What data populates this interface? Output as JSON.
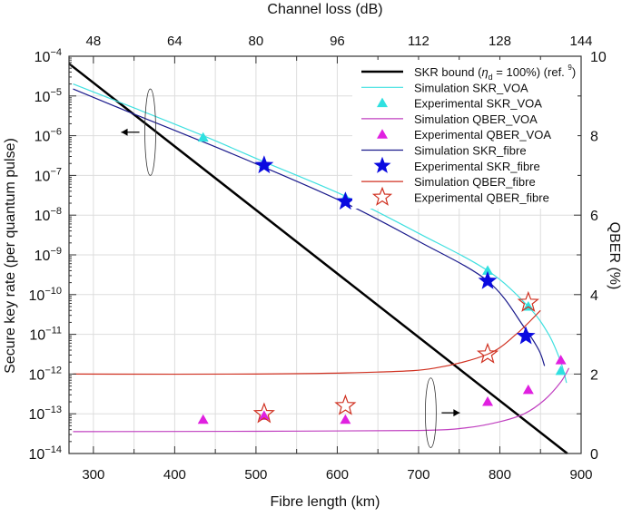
{
  "chart_data": {
    "type": "line",
    "xlabel": "Fibre length (km)",
    "ylabel": "Secure key rate (per quantum pulse)",
    "y2label": "QBER (%)",
    "x2label": "Channel loss (dB)",
    "xlim": [
      270,
      900
    ],
    "ylim": [
      1e-14,
      0.0001
    ],
    "yscale": "log",
    "y2lim": [
      0,
      10
    ],
    "grid": true,
    "legend_position": "top-right",
    "xticks": [
      300,
      400,
      500,
      600,
      700,
      800,
      900
    ],
    "x2ticks": [
      48,
      64,
      80,
      96,
      112,
      128,
      144
    ],
    "yticks_exp": [
      -4,
      -5,
      -6,
      -7,
      -8,
      -9,
      -10,
      -11,
      -12,
      -13,
      -14
    ],
    "y2ticks": [
      0,
      2,
      4,
      6,
      8,
      10
    ],
    "series": [
      {
        "name": "SKR bound (η_d = 100%) (ref. 9)",
        "legend_main": "SKR bound (",
        "legend_eta": "η",
        "legend_sub": "d",
        "legend_rest": " = 100%) (ref. ",
        "legend_sup": "9",
        "legend_end": ")",
        "kind": "line",
        "axis": "left",
        "color": "#000000",
        "x": [
          270,
          883
        ],
        "y": [
          6.5e-05,
          1e-14
        ]
      },
      {
        "name": "Simulation SKR_VOA",
        "kind": "line",
        "axis": "left",
        "color": "#40e0e0",
        "x": [
          275,
          350,
          435,
          510,
          610,
          700,
          785,
          835,
          860,
          875,
          882
        ],
        "y": [
          2e-05,
          5e-06,
          1e-06,
          2.2e-07,
          3e-08,
          3.5e-09,
          4e-10,
          5e-11,
          1e-11,
          2e-12,
          6e-13
        ]
      },
      {
        "name": "Experimental SKR_VOA",
        "kind": "triangle",
        "axis": "left",
        "color": "#30e0e0",
        "x": [
          435,
          510,
          610,
          785,
          835,
          875
        ],
        "y": [
          9e-07,
          2e-07,
          2.8e-08,
          4e-10,
          5e-11,
          1.2e-12
        ]
      },
      {
        "name": "Simulation QBER_VOA",
        "kind": "line",
        "axis": "right",
        "color": "#c040c0",
        "x": [
          275,
          500,
          700,
          760,
          800,
          830,
          855,
          875,
          885
        ],
        "y": [
          0.55,
          0.56,
          0.58,
          0.65,
          0.8,
          1.0,
          1.35,
          1.8,
          2.15
        ]
      },
      {
        "name": "Experimental QBER_VOA",
        "kind": "triangle",
        "axis": "right",
        "color": "#e020e0",
        "x": [
          435,
          510,
          610,
          785,
          835,
          875
        ],
        "y": [
          0.85,
          0.95,
          0.85,
          1.3,
          1.6,
          2.35
        ]
      },
      {
        "name": "Simulation SKR_fibre",
        "kind": "line",
        "axis": "left",
        "color": "#1a1a8c",
        "x": [
          275,
          350,
          435,
          510,
          610,
          700,
          785,
          830,
          848,
          855
        ],
        "y": [
          1.5e-05,
          3.5e-06,
          7e-07,
          1.6e-07,
          2e-08,
          2.2e-09,
          2.2e-10,
          1.5e-11,
          4e-12,
          1.6e-12
        ]
      },
      {
        "name": "Experimental SKR_fibre",
        "kind": "star",
        "axis": "left",
        "color": "#0a0ae0",
        "x": [
          510,
          610,
          785,
          832
        ],
        "y": [
          1.8e-07,
          2.2e-08,
          2.2e-10,
          9e-12
        ]
      },
      {
        "name": "Simulation QBER_fibre",
        "kind": "line",
        "axis": "right",
        "color": "#d03020",
        "x": [
          275,
          500,
          650,
          720,
          785,
          820,
          850
        ],
        "y": [
          2.0,
          2.0,
          2.05,
          2.15,
          2.5,
          3.0,
          3.6
        ]
      },
      {
        "name": "Experimental QBER_fibre",
        "kind": "openstar",
        "axis": "right",
        "color": "#d03020",
        "x": [
          510,
          610,
          785,
          835
        ],
        "y": [
          1.0,
          1.2,
          2.5,
          3.8
        ]
      }
    ],
    "annotations": [
      {
        "type": "ellipse-arrow",
        "target_axis": "left",
        "arrow": "left",
        "x": 370,
        "y_range": [
          1e-07,
          1.5e-05
        ]
      },
      {
        "type": "ellipse-arrow",
        "target_axis": "right",
        "arrow": "right",
        "x": 715,
        "y_range": [
          0.15,
          1.9
        ]
      }
    ]
  }
}
